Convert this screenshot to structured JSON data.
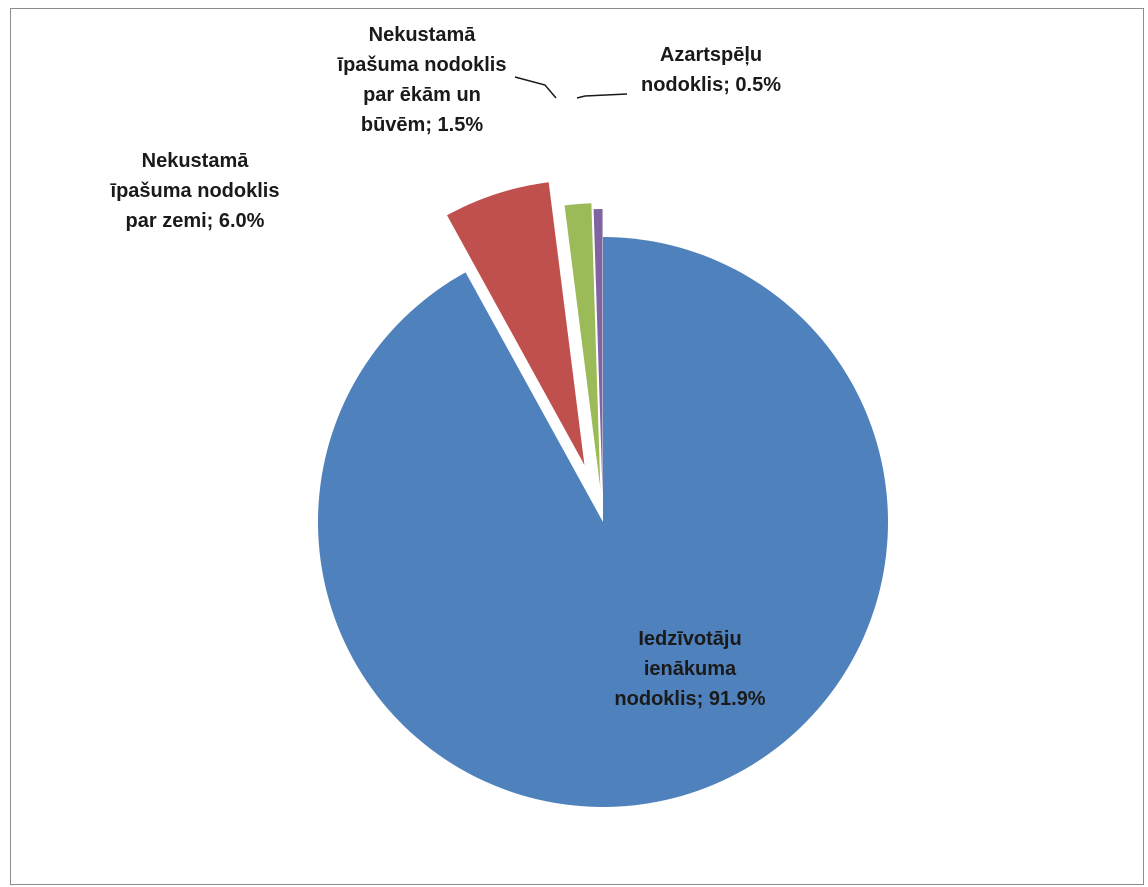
{
  "chart_data": {
    "type": "pie",
    "title": "",
    "categories": [
      "Iedzīvotāju ienākuma nodoklis",
      "Nekustamā īpašuma nodoklis par zemi",
      "Nekustamā īpašuma nodoklis par ēkām un būvēm",
      "Azartspēļu nodoklis"
    ],
    "values": [
      91.9,
      6.0,
      1.5,
      0.5
    ],
    "unit": "%",
    "colors": [
      "#4f81bd",
      "#c0504d",
      "#9bbb59",
      "#8064a2"
    ],
    "exploded": true,
    "legend": "none",
    "labels": [
      {
        "lines": [
          "Iedzīvotāju",
          "ienākuma",
          "nodoklis; 91.9%"
        ]
      },
      {
        "lines": [
          "Nekustamā",
          "īpašuma nodoklis",
          "par zemi; 6.0%"
        ]
      },
      {
        "lines": [
          "Nekustamā",
          "īpašuma nodoklis",
          "par ēkām un",
          "būvēm; 1.5%"
        ]
      },
      {
        "lines": [
          "Azartspēļu",
          "nodoklis; 0.5%"
        ]
      }
    ]
  }
}
